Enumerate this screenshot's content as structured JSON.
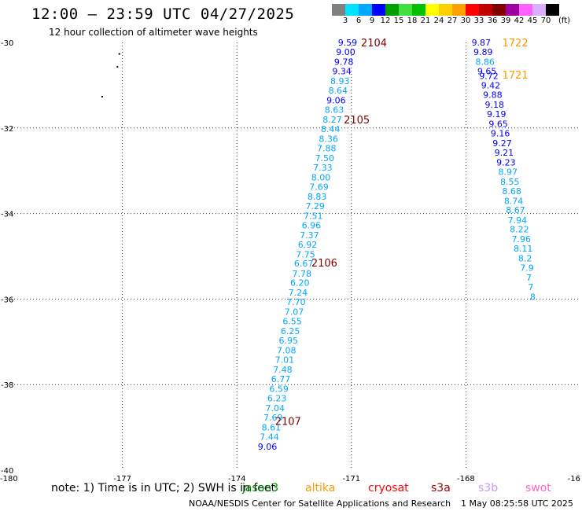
{
  "header": {
    "title": "12:00 – 23:59 UTC 04/27/2025",
    "subtitle": "12 hour collection of altimeter wave heights"
  },
  "colorbar": {
    "unit": "(ft)",
    "levels": [
      "3",
      "6",
      "9",
      "12",
      "15",
      "18",
      "21",
      "24",
      "27",
      "30",
      "33",
      "36",
      "39",
      "42",
      "45",
      "70"
    ],
    "colors": [
      "#808080",
      "#00e0ff",
      "#00a8ff",
      "#0000ff",
      "#00a000",
      "#40e040",
      "#00c000",
      "#ffff00",
      "#ffd000",
      "#ffa000",
      "#ff0000",
      "#c00000",
      "#800000",
      "#a000a0",
      "#ff60ff",
      "#d8b0ff",
      "#000000"
    ]
  },
  "footer": {
    "note": "note:  1) Time is in UTC; 2) SWH is in feet",
    "satellites": [
      {
        "name": "jason3",
        "color": "#008800"
      },
      {
        "name": "altika",
        "color": "#ff9900"
      },
      {
        "name": "cryosat",
        "color": "#ff0000"
      },
      {
        "name": "s3a",
        "color": "#990000"
      },
      {
        "name": "s3b",
        "color": "#cc99ff"
      },
      {
        "name": "swot",
        "color": "#ff66cc"
      }
    ],
    "credit": "NOAA/NESDIS Center for Satellite Applications and Research",
    "stamp": "1 May 08:25:58 UTC 2025"
  },
  "chart_data": {
    "type": "scatter",
    "title": "12:00 – 23:59 UTC 04/27/2025",
    "xlim": [
      -180,
      -165
    ],
    "ylim": [
      -40,
      -30
    ],
    "x_ticks": [
      "-180",
      "-177",
      "-174",
      "-171",
      "-168",
      "-16"
    ],
    "y_ticks": [
      "-30",
      "-32",
      "-34",
      "-36",
      "-38",
      "-40"
    ],
    "grid": true,
    "track_a": [
      {
        "lon": -171.1,
        "lat": -30.0,
        "v": "9.59"
      },
      {
        "lon": -171.15,
        "lat": -30.22,
        "v": "9.00"
      },
      {
        "lon": -171.2,
        "lat": -30.45,
        "v": "9.78"
      },
      {
        "lon": -171.25,
        "lat": -30.67,
        "v": "9.34"
      },
      {
        "lon": -171.3,
        "lat": -30.9,
        "v": "8.93"
      },
      {
        "lon": -171.35,
        "lat": -31.12,
        "v": "8.64"
      },
      {
        "lon": -171.4,
        "lat": -31.35,
        "v": "9.06"
      },
      {
        "lon": -171.45,
        "lat": -31.57,
        "v": "8.63"
      },
      {
        "lon": -171.5,
        "lat": -31.8,
        "v": "8.27"
      },
      {
        "lon": -171.55,
        "lat": -32.02,
        "v": "8.44"
      },
      {
        "lon": -171.6,
        "lat": -32.25,
        "v": "8.36"
      },
      {
        "lon": -171.65,
        "lat": -32.47,
        "v": "7.88"
      },
      {
        "lon": -171.7,
        "lat": -32.7,
        "v": "7.50"
      },
      {
        "lon": -171.75,
        "lat": -32.92,
        "v": "7.33"
      },
      {
        "lon": -171.8,
        "lat": -33.15,
        "v": "8.00"
      },
      {
        "lon": -171.85,
        "lat": -33.37,
        "v": "7.69"
      },
      {
        "lon": -171.9,
        "lat": -33.6,
        "v": "8.83"
      },
      {
        "lon": -171.95,
        "lat": -33.82,
        "v": "7.29"
      },
      {
        "lon": -172.0,
        "lat": -34.05,
        "v": "7.51"
      },
      {
        "lon": -172.05,
        "lat": -34.27,
        "v": "6.96"
      },
      {
        "lon": -172.1,
        "lat": -34.5,
        "v": "7.37"
      },
      {
        "lon": -172.15,
        "lat": -34.72,
        "v": "6.92"
      },
      {
        "lon": -172.2,
        "lat": -34.95,
        "v": "7.75"
      },
      {
        "lon": -172.25,
        "lat": -35.17,
        "v": "6.67"
      },
      {
        "lon": -172.3,
        "lat": -35.4,
        "v": "7.78"
      },
      {
        "lon": -172.35,
        "lat": -35.62,
        "v": "6.20"
      },
      {
        "lon": -172.4,
        "lat": -35.85,
        "v": "7.24"
      },
      {
        "lon": -172.45,
        "lat": -36.07,
        "v": "7.70"
      },
      {
        "lon": -172.5,
        "lat": -36.3,
        "v": "7.07"
      },
      {
        "lon": -172.55,
        "lat": -36.52,
        "v": "6.55"
      },
      {
        "lon": -172.6,
        "lat": -36.75,
        "v": "6.25"
      },
      {
        "lon": -172.65,
        "lat": -36.97,
        "v": "6.95"
      },
      {
        "lon": -172.7,
        "lat": -37.2,
        "v": "7.08"
      },
      {
        "lon": -172.75,
        "lat": -37.42,
        "v": "7.01"
      },
      {
        "lon": -172.8,
        "lat": -37.65,
        "v": "7.48"
      },
      {
        "lon": -172.85,
        "lat": -37.87,
        "v": "6.77"
      },
      {
        "lon": -172.9,
        "lat": -38.1,
        "v": "6.59"
      },
      {
        "lon": -172.95,
        "lat": -38.32,
        "v": "6.23"
      },
      {
        "lon": -173.0,
        "lat": -38.55,
        "v": "7.04"
      },
      {
        "lon": -173.05,
        "lat": -38.77,
        "v": "7.69"
      },
      {
        "lon": -173.1,
        "lat": -39.0,
        "v": "8.61"
      },
      {
        "lon": -173.15,
        "lat": -39.22,
        "v": "7.44"
      },
      {
        "lon": -173.2,
        "lat": -39.45,
        "v": "9.06"
      }
    ],
    "track_b": [
      {
        "lon": -167.6,
        "lat": -30.0,
        "v": "9.87"
      },
      {
        "lon": -167.55,
        "lat": -30.22,
        "v": "9.89"
      },
      {
        "lon": -167.5,
        "lat": -30.45,
        "v": "8.86"
      },
      {
        "lon": -167.45,
        "lat": -30.67,
        "v": "9.65"
      },
      {
        "lon": -167.4,
        "lat": -30.78,
        "v": "9.72"
      },
      {
        "lon": -167.35,
        "lat": -31.0,
        "v": "9.42"
      },
      {
        "lon": -167.3,
        "lat": -31.22,
        "v": "9.88"
      },
      {
        "lon": -167.25,
        "lat": -31.45,
        "v": "9.18"
      },
      {
        "lon": -167.2,
        "lat": -31.67,
        "v": "9.19"
      },
      {
        "lon": -167.15,
        "lat": -31.9,
        "v": "9.65"
      },
      {
        "lon": -167.1,
        "lat": -32.12,
        "v": "9.16"
      },
      {
        "lon": -167.05,
        "lat": -32.35,
        "v": "9.27"
      },
      {
        "lon": -167.0,
        "lat": -32.57,
        "v": "9.21"
      },
      {
        "lon": -166.95,
        "lat": -32.8,
        "v": "9.23"
      },
      {
        "lon": -166.9,
        "lat": -33.02,
        "v": "8.97"
      },
      {
        "lon": -166.85,
        "lat": -33.25,
        "v": "8.55"
      },
      {
        "lon": -166.8,
        "lat": -33.47,
        "v": "8.68"
      },
      {
        "lon": -166.75,
        "lat": -33.7,
        "v": "8.74"
      },
      {
        "lon": -166.7,
        "lat": -33.92,
        "v": "8.67"
      },
      {
        "lon": -166.65,
        "lat": -34.15,
        "v": "7.94"
      },
      {
        "lon": -166.6,
        "lat": -34.37,
        "v": "8.22"
      },
      {
        "lon": -166.55,
        "lat": -34.6,
        "v": "7.96"
      },
      {
        "lon": -166.5,
        "lat": -34.82,
        "v": "8.11"
      },
      {
        "lon": -166.45,
        "lat": -35.05,
        "v": "8.2"
      },
      {
        "lon": -166.4,
        "lat": -35.27,
        "v": "7.9"
      },
      {
        "lon": -166.35,
        "lat": -35.5,
        "v": "7"
      },
      {
        "lon": -166.3,
        "lat": -35.72,
        "v": "7"
      },
      {
        "lon": -166.25,
        "lat": -35.95,
        "v": "8"
      }
    ],
    "annotations": [
      {
        "text": "2104",
        "color": "#800000",
        "lon": -170.75,
        "lat": -30.0
      },
      {
        "text": "2105",
        "color": "#800000",
        "lon": -171.2,
        "lat": -31.8
      },
      {
        "text": "2106",
        "color": "#800000",
        "lon": -172.05,
        "lat": -35.15
      },
      {
        "text": "2107",
        "color": "#800000",
        "lon": -173.0,
        "lat": -38.85
      },
      {
        "text": "1722",
        "color": "#ff9900",
        "lon": -167.05,
        "lat": -30.0
      },
      {
        "text": "1721",
        "color": "#ff9900",
        "lon": -167.05,
        "lat": -30.75
      }
    ],
    "land_specks": [
      {
        "lon": -177.1,
        "lat": -30.25
      },
      {
        "lon": -177.15,
        "lat": -30.55
      },
      {
        "lon": -177.55,
        "lat": -31.25
      }
    ]
  }
}
